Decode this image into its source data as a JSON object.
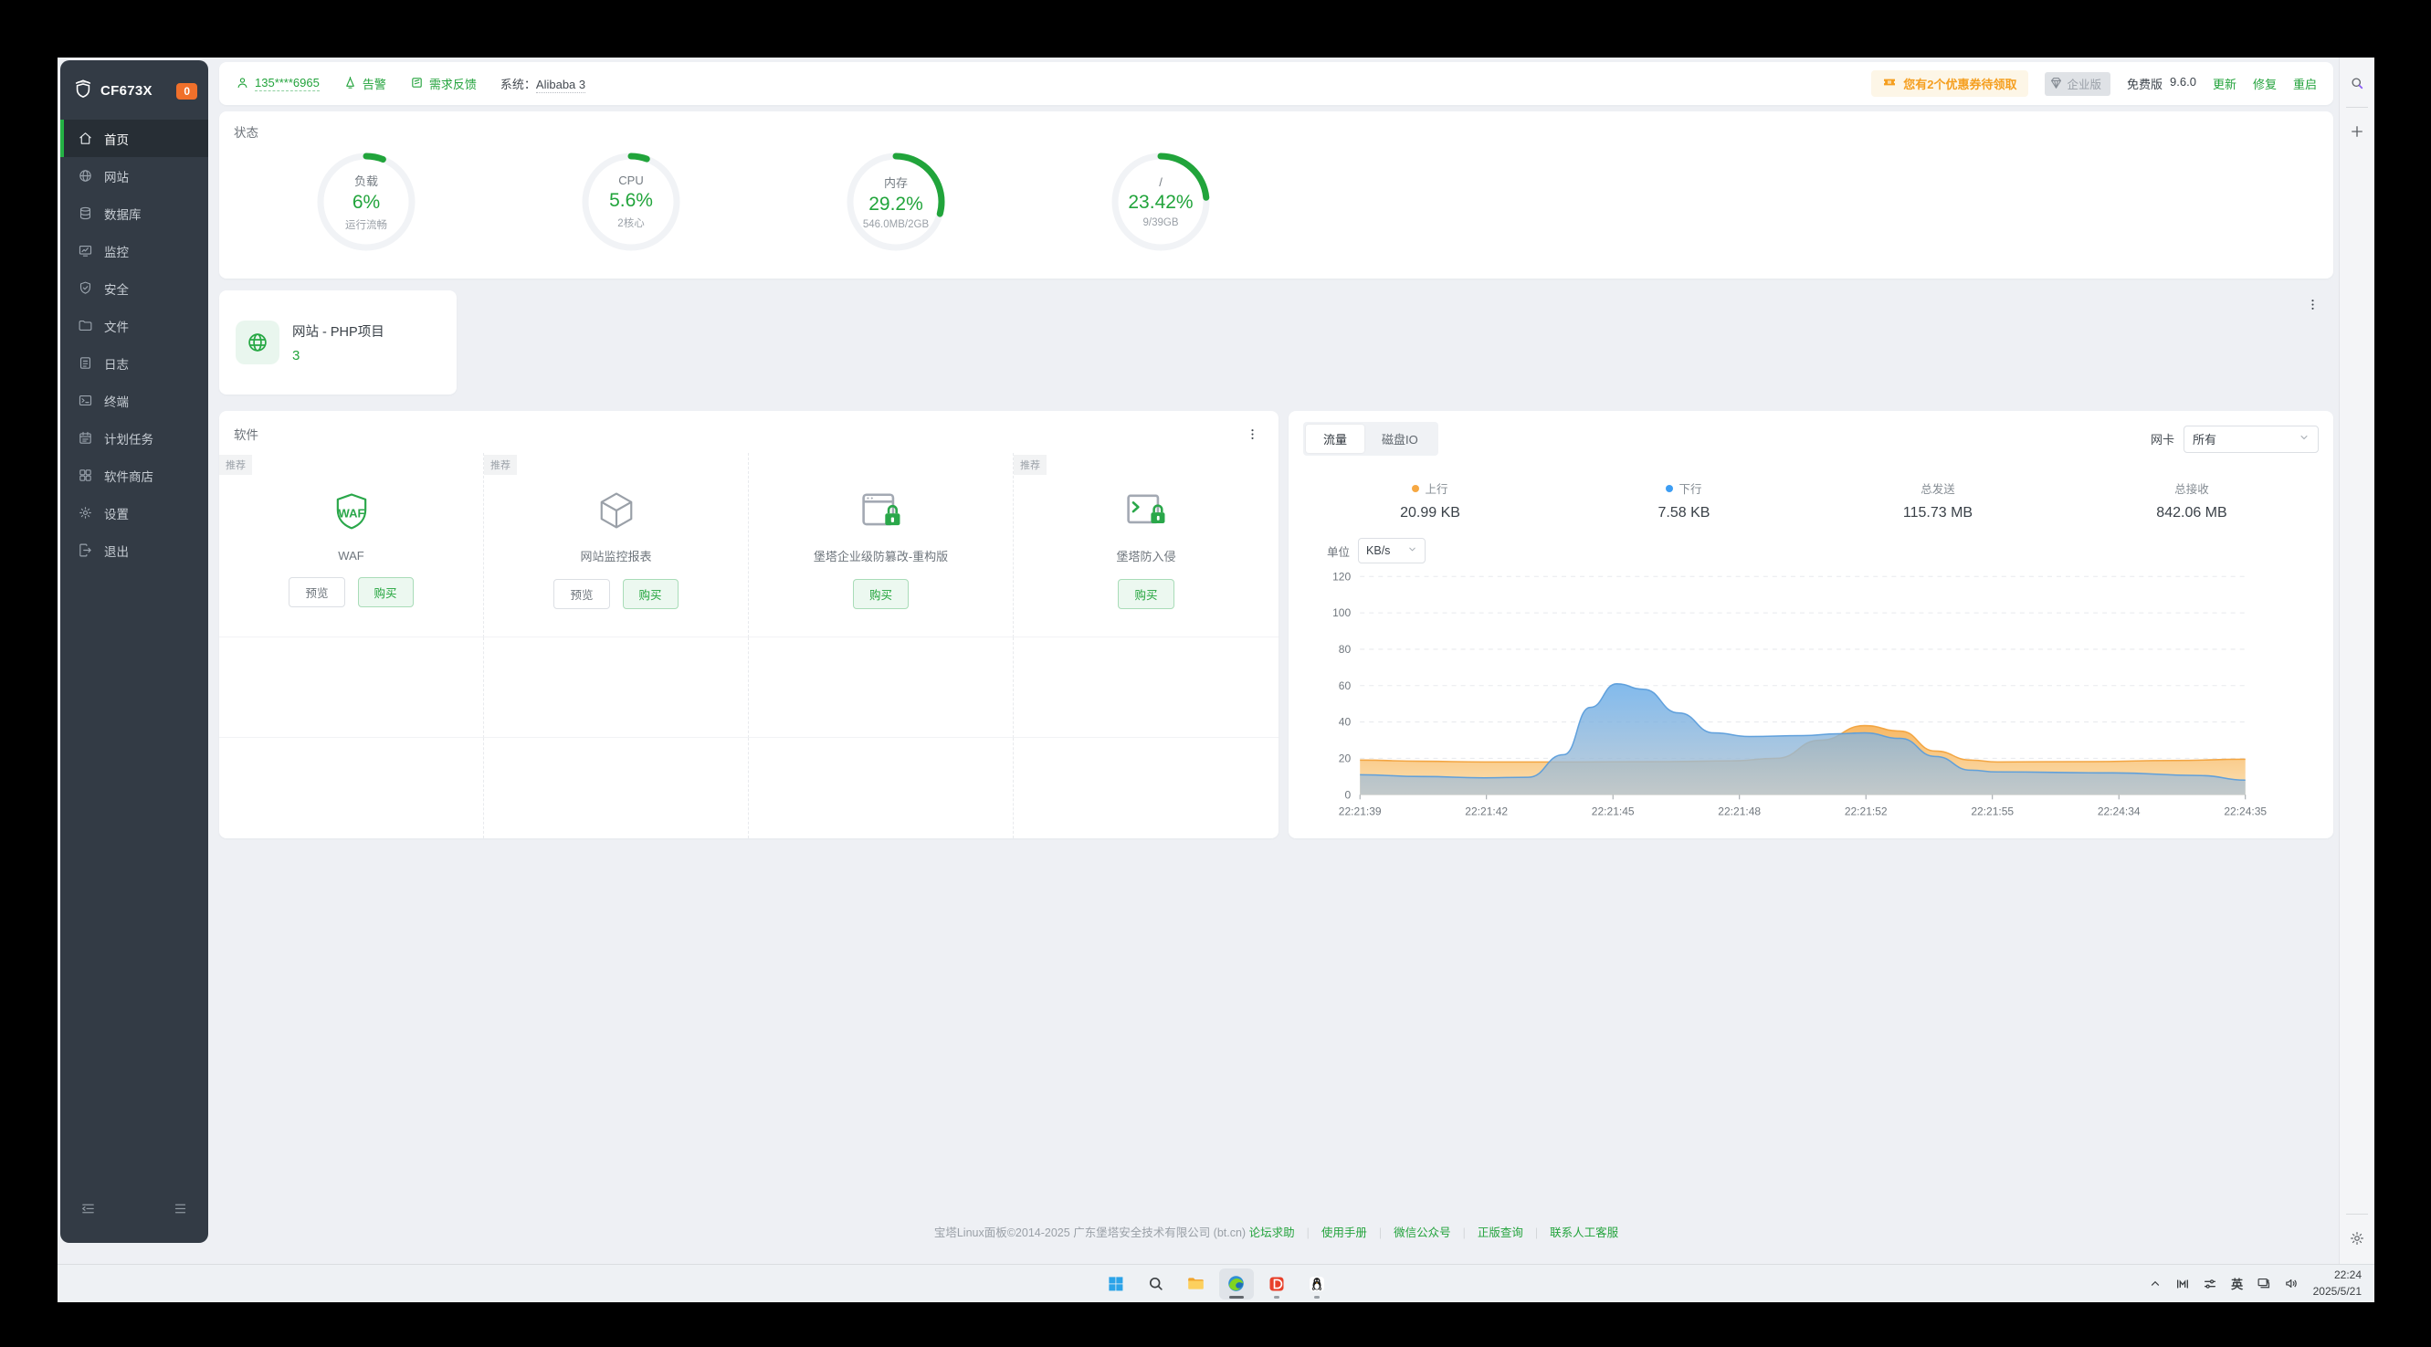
{
  "sidebar": {
    "logo": "CF673X",
    "badge": "0",
    "items": [
      {
        "key": "home",
        "label": "首页",
        "icon": "home-icon",
        "active": true
      },
      {
        "key": "site",
        "label": "网站",
        "icon": "globe-icon",
        "active": false
      },
      {
        "key": "database",
        "label": "数据库",
        "icon": "database-icon",
        "active": false
      },
      {
        "key": "monitor",
        "label": "监控",
        "icon": "monitor-icon",
        "active": false
      },
      {
        "key": "security",
        "label": "安全",
        "icon": "shield-icon",
        "active": false
      },
      {
        "key": "files",
        "label": "文件",
        "icon": "folder-icon",
        "active": false
      },
      {
        "key": "logs",
        "label": "日志",
        "icon": "log-icon",
        "active": false
      },
      {
        "key": "terminal",
        "label": "终端",
        "icon": "terminal-icon",
        "active": false
      },
      {
        "key": "cron",
        "label": "计划任务",
        "icon": "calendar-icon",
        "active": false
      },
      {
        "key": "appstore",
        "label": "软件商店",
        "icon": "grid-icon",
        "active": false
      },
      {
        "key": "settings",
        "label": "设置",
        "icon": "gear-icon",
        "active": false
      },
      {
        "key": "logout",
        "label": "退出",
        "icon": "logout-icon",
        "active": false
      }
    ]
  },
  "topbar": {
    "account": "135****6965",
    "alarm": "告警",
    "feedback": "需求反馈",
    "system_label": "系统：",
    "system_value": "Alibaba 3",
    "coupon": "您有2个优惠券待领取",
    "enterprise_badge": "企业版",
    "edition": "免费版",
    "version": "9.6.0",
    "actions": [
      "更新",
      "修复",
      "重启"
    ]
  },
  "status": {
    "title": "状态",
    "gauges": [
      {
        "label": "负载",
        "value": "6%",
        "percent": 6,
        "sub": "运行流畅"
      },
      {
        "label": "CPU",
        "value": "5.6%",
        "percent": 5.6,
        "sub": "2核心"
      },
      {
        "label": "内存",
        "value": "29.2%",
        "percent": 29.2,
        "sub": "546.0MB/2GB"
      },
      {
        "label": "/",
        "value": "23.42%",
        "percent": 23.42,
        "sub": "9/39GB"
      }
    ]
  },
  "project_card": {
    "title": "网站 - PHP项目",
    "count": "3"
  },
  "software": {
    "title": "软件",
    "recommend_tag": "推荐",
    "items": [
      {
        "name": "WAF",
        "icon": "waf-shield-icon",
        "recommended": true,
        "buttons": [
          "预览",
          "购买"
        ]
      },
      {
        "name": "网站监控报表",
        "icon": "cube-icon",
        "recommended": true,
        "buttons": [
          "预览",
          "购买"
        ]
      },
      {
        "name": "堡塔企业级防篡改-重构版",
        "icon": "window-lock-icon",
        "recommended": false,
        "buttons": [
          "购买"
        ]
      },
      {
        "name": "堡塔防入侵",
        "icon": "terminal-lock-icon",
        "recommended": true,
        "buttons": [
          "购买"
        ]
      }
    ]
  },
  "traffic": {
    "tabs": [
      "流量",
      "磁盘IO"
    ],
    "active_tab": 0,
    "nic_label": "网卡",
    "nic_value": "所有",
    "unit_label": "单位",
    "unit_value": "KB/s",
    "stats": [
      {
        "label": "上行",
        "value": "20.99 KB",
        "dot": "#f6a843"
      },
      {
        "label": "下行",
        "value": "7.58 KB",
        "dot": "#3d9df3"
      },
      {
        "label": "总发送",
        "value": "115.73 MB",
        "dot": ""
      },
      {
        "label": "总接收",
        "value": "842.06 MB",
        "dot": ""
      }
    ]
  },
  "chart_data": {
    "type": "area",
    "unit": "KB/s",
    "ylim": [
      0,
      120
    ],
    "y_ticks": [
      0,
      20,
      40,
      60,
      80,
      100,
      120
    ],
    "x_ticks": [
      "22:21:39",
      "22:21:42",
      "22:21:45",
      "22:21:48",
      "22:21:52",
      "22:21:55",
      "22:24:34",
      "22:24:35"
    ],
    "grid": "dashed-horizontal",
    "legend_position": "top-stats",
    "series": [
      {
        "name": "上行",
        "color": "#f2a23c",
        "points": [
          [
            0,
            19
          ],
          [
            0.07,
            18.4
          ],
          [
            0.14,
            18
          ],
          [
            0.25,
            18
          ],
          [
            0.35,
            18.2
          ],
          [
            0.42,
            18.6
          ],
          [
            0.47,
            20
          ],
          [
            0.52,
            30
          ],
          [
            0.57,
            38
          ],
          [
            0.61,
            35
          ],
          [
            0.65,
            24
          ],
          [
            0.69,
            19
          ],
          [
            0.72,
            18
          ],
          [
            0.82,
            18.2
          ],
          [
            0.92,
            18.8
          ],
          [
            1,
            19.5
          ]
        ]
      },
      {
        "name": "下行",
        "color": "#5b9ddb",
        "points": [
          [
            0,
            11
          ],
          [
            0.07,
            10
          ],
          [
            0.14,
            9.3
          ],
          [
            0.19,
            9.6
          ],
          [
            0.23,
            22
          ],
          [
            0.26,
            48
          ],
          [
            0.29,
            61
          ],
          [
            0.32,
            58
          ],
          [
            0.36,
            45
          ],
          [
            0.4,
            34
          ],
          [
            0.44,
            32
          ],
          [
            0.5,
            32.5
          ],
          [
            0.54,
            33.5
          ],
          [
            0.57,
            34
          ],
          [
            0.61,
            31
          ],
          [
            0.65,
            21
          ],
          [
            0.69,
            13.5
          ],
          [
            0.72,
            12.5
          ],
          [
            0.85,
            12
          ],
          [
            0.95,
            10.5
          ],
          [
            1,
            8
          ]
        ]
      }
    ]
  },
  "footer": {
    "copyright": "宝塔Linux面板©2014-2025 广东堡塔安全技术有限公司 (bt.cn)",
    "links": [
      "论坛求助",
      "使用手册",
      "微信公众号",
      "正版查询",
      "联系人工客服"
    ]
  },
  "taskbar": {
    "apps": [
      {
        "icon": "windows-logo-icon",
        "active": false,
        "running": false
      },
      {
        "icon": "taskbar-search-icon",
        "active": false,
        "running": false
      },
      {
        "icon": "file-explorer-icon",
        "active": false,
        "running": false
      },
      {
        "icon": "edge-browser-icon",
        "active": true,
        "running": false
      },
      {
        "icon": "red-reader-app-icon",
        "active": false,
        "running": true
      },
      {
        "icon": "qq-messenger-icon",
        "active": false,
        "running": true
      }
    ],
    "ime": "英",
    "time": "22:24",
    "date": "2025/5/21"
  },
  "colors": {
    "accent_green": "#21a43b",
    "badge_orange": "#f0702b",
    "up_orange": "#f2a23c",
    "down_blue": "#5b9ddb"
  }
}
